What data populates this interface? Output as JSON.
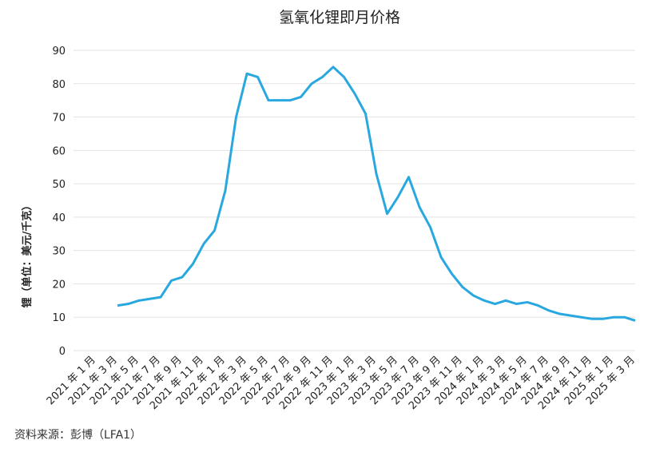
{
  "chart_data": {
    "type": "line",
    "title": "氢氧化锂即月价格",
    "y_label": "锂（单位：美元/千克）",
    "source": "资料来源：彭博（LFA1）",
    "categories": [
      "2021 年 1 月",
      null,
      "2021 年 3 月",
      null,
      "2021 年 5 月",
      null,
      "2021 年 7 月",
      null,
      "2021 年 9 月",
      null,
      "2021 年 11 月",
      null,
      "2022 年 1 月",
      null,
      "2022 年 3 月",
      null,
      "2022 年 5 月",
      null,
      "2022 年 7 月",
      null,
      "2022 年 9 月",
      null,
      "2022 年 11 月",
      null,
      "2023 年 1 月",
      null,
      "2023 年 3 月",
      null,
      "2023 年 5 月",
      null,
      "2023 年 7 月",
      null,
      "2023 年 9 月",
      null,
      "2023 年 11 月",
      null,
      "2024 年 1 月",
      null,
      "2024 年 3 月",
      null,
      "2024 年 5 月",
      null,
      "2024 年 7 月",
      null,
      "2024 年 9 月",
      null,
      "2024 年 11 月",
      null,
      "2025 年 1 月",
      null,
      "2025 年 3 月"
    ],
    "series": [
      {
        "name": "LFA1",
        "color": "#29a8e0",
        "values": [
          null,
          null,
          13.5,
          14,
          15,
          15.5,
          16,
          21,
          22,
          26,
          32,
          36,
          48,
          70,
          83,
          82,
          75,
          75,
          75,
          76,
          80,
          82,
          85,
          82,
          77,
          71,
          53,
          41,
          46,
          52,
          43,
          37,
          28,
          23,
          19,
          16.5,
          15,
          14,
          15,
          14,
          14.5,
          13.5,
          12,
          11,
          10.5,
          10,
          9.5,
          9.5,
          10,
          10,
          9
        ]
      }
    ],
    "ylim": [
      0,
      90
    ],
    "yticks": [
      0,
      10,
      20,
      30,
      40,
      50,
      60,
      70,
      80,
      90
    ],
    "grid": true
  }
}
